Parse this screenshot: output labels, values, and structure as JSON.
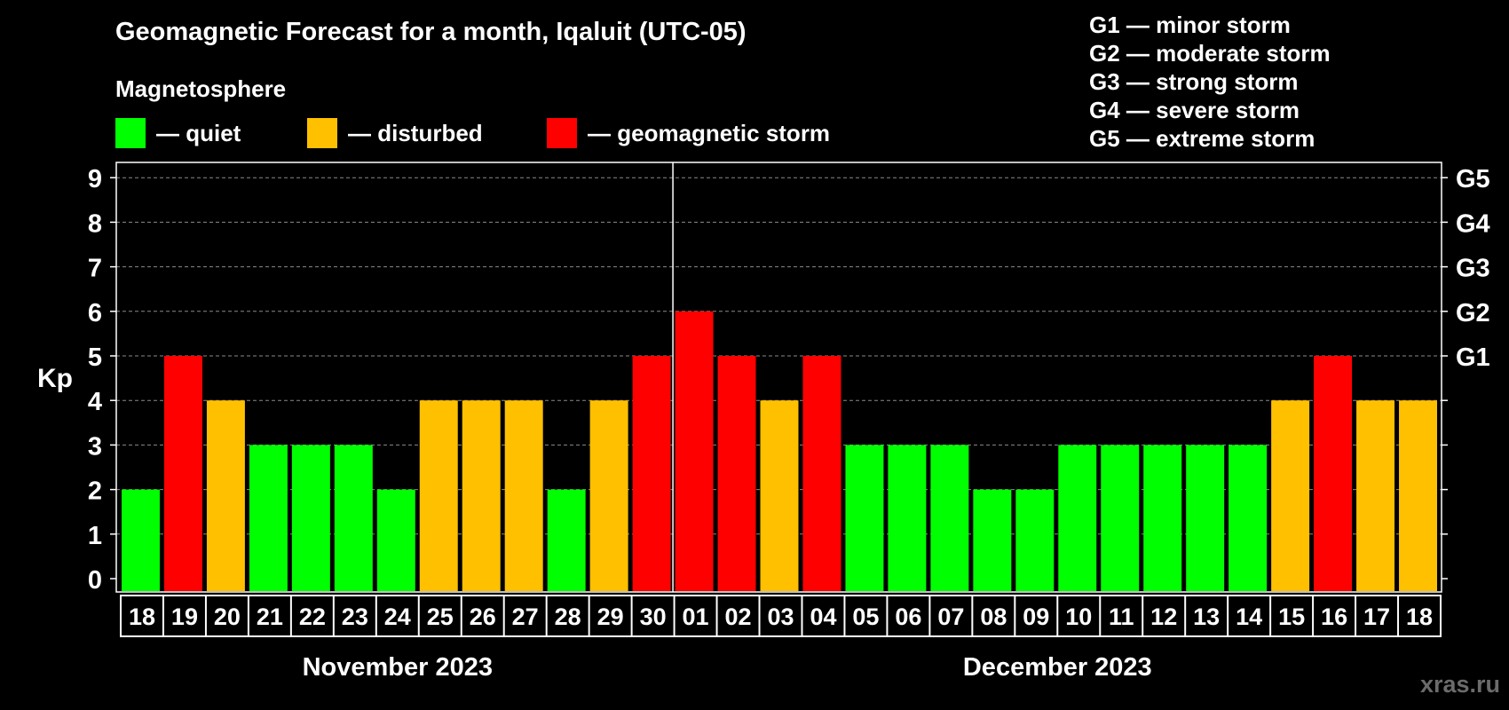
{
  "chart_data": {
    "type": "bar",
    "title": "Geomagnetic Forecast for a month, Iqaluit (UTC-05)",
    "ylabel": "Kp",
    "xlabel": "",
    "ylim": [
      0,
      9
    ],
    "yticks": [
      0,
      1,
      2,
      3,
      4,
      5,
      6,
      7,
      8,
      9
    ],
    "right_axis_labels": [
      {
        "kp": 5,
        "label": "G1"
      },
      {
        "kp": 6,
        "label": "G2"
      },
      {
        "kp": 7,
        "label": "G3"
      },
      {
        "kp": 8,
        "label": "G4"
      },
      {
        "kp": 9,
        "label": "G5"
      }
    ],
    "categories": [
      "18",
      "19",
      "20",
      "21",
      "22",
      "23",
      "24",
      "25",
      "26",
      "27",
      "28",
      "29",
      "30",
      "01",
      "02",
      "03",
      "04",
      "05",
      "06",
      "07",
      "08",
      "09",
      "10",
      "11",
      "12",
      "13",
      "14",
      "15",
      "16",
      "17",
      "18"
    ],
    "values": [
      2,
      5,
      4,
      3,
      3,
      3,
      2,
      4,
      4,
      4,
      2,
      4,
      5,
      6,
      5,
      4,
      5,
      3,
      3,
      3,
      2,
      2,
      3,
      3,
      3,
      3,
      3,
      4,
      5,
      4,
      4
    ],
    "month_groups": [
      {
        "label": "November 2023",
        "count": 13
      },
      {
        "label": "December 2023",
        "count": 18
      }
    ],
    "grid": true,
    "legend": {
      "heading": "Magnetosphere",
      "items": [
        {
          "label": "— quiet",
          "color": "#00ff00"
        },
        {
          "label": "— disturbed",
          "color": "#ffc000"
        },
        {
          "label": "— geomagnetic storm",
          "color": "#ff0000"
        }
      ]
    },
    "storm_levels": [
      "G1 — minor storm",
      "G2 — moderate storm",
      "G3 — strong storm",
      "G4 — severe storm",
      "G5 — extreme storm"
    ]
  },
  "watermark": "xras.ru"
}
